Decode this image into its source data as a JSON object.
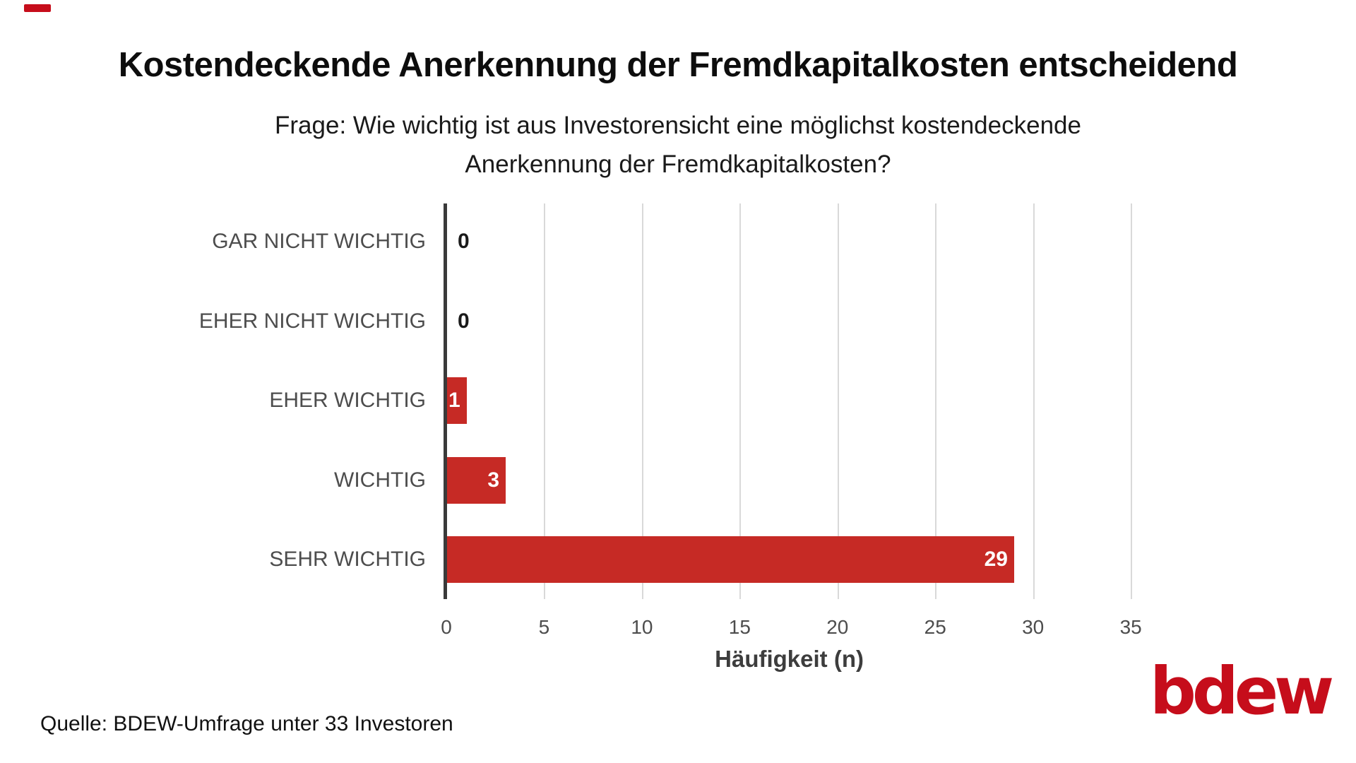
{
  "slide": {
    "title": "Kostendeckende Anerkennung der Fremdkapitalkosten entscheidend",
    "subtitle_line1": "Frage: Wie wichtig ist aus Investorensicht eine möglichst kostendeckende",
    "subtitle_line2": "Anerkennung der Fremdkapitalkosten?",
    "source": "Quelle: BDEW-Umfrage unter 33 Investoren",
    "logo_text": "bdew"
  },
  "colors": {
    "bar_red": "#c62a25",
    "logo_red": "#c60d1b",
    "axis_dark": "#3a3a3a",
    "gridline_gray": "#d9d9d9",
    "category_label_gray": "#4d4d4d"
  },
  "chart_data": {
    "type": "bar",
    "orientation": "horizontal",
    "title": "Kostendeckende Anerkennung der Fremdkapitalkosten entscheidend",
    "subtitle": "Frage: Wie wichtig ist aus Investorensicht eine möglichst kostendeckende Anerkennung der Fremdkapitalkosten?",
    "categories": [
      "GAR NICHT WICHTIG",
      "EHER NICHT WICHTIG",
      "EHER WICHTIG",
      "WICHTIG",
      "SEHR WICHTIG"
    ],
    "values": [
      0,
      0,
      1,
      3,
      29
    ],
    "xlabel": "Häufigkeit (n)",
    "ylabel": "",
    "xticks": [
      0,
      5,
      10,
      15,
      20,
      25,
      30,
      35
    ],
    "xlim": [
      0,
      36.5
    ],
    "grid": true,
    "legend": false,
    "bar_color": "#c62a25",
    "value_labels_shown": true
  }
}
